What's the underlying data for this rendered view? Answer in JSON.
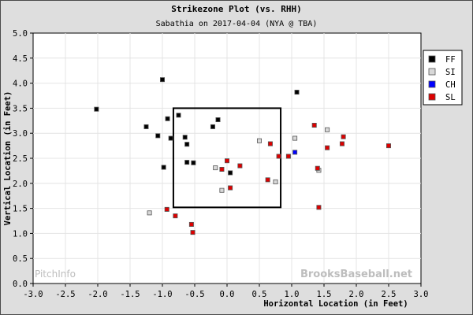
{
  "chart_data": {
    "type": "scatter",
    "title": "Strikezone Plot (vs. RHH)",
    "subtitle": "Sabathia on 2017-04-04 (NYA @ TBA)",
    "xlabel": "Horizontal Location (in Feet)",
    "ylabel": "Vertical Location (in Feet)",
    "xlim": [
      -3.0,
      3.0
    ],
    "ylim": [
      0.0,
      5.0
    ],
    "x_ticks": [
      "-3.0",
      "-2.5",
      "-2.0",
      "-1.5",
      "-1.0",
      "-0.5",
      "0.0",
      "0.5",
      "1.0",
      "1.5",
      "2.0",
      "2.5",
      "3.0"
    ],
    "y_ticks": [
      "0.0",
      "0.5",
      "1.0",
      "1.5",
      "2.0",
      "2.5",
      "3.0",
      "3.5",
      "4.0",
      "4.5",
      "5.0"
    ],
    "grid": true,
    "legend_position": "top-right",
    "strike_zone": {
      "x": [
        -0.83,
        0.83
      ],
      "y": [
        1.52,
        3.5
      ]
    },
    "watermark_left": "PitchInfo",
    "watermark_right": "BrooksBaseball.net",
    "series": [
      {
        "name": "FF",
        "color": "#000000",
        "points": [
          [
            -2.02,
            3.48
          ],
          [
            -1.25,
            3.13
          ],
          [
            -1.07,
            2.95
          ],
          [
            -1.0,
            4.07
          ],
          [
            -0.98,
            2.32
          ],
          [
            -0.92,
            3.29
          ],
          [
            -0.87,
            2.9
          ],
          [
            -0.75,
            3.36
          ],
          [
            -0.65,
            2.92
          ],
          [
            -0.62,
            2.78
          ],
          [
            -0.62,
            2.42
          ],
          [
            -0.52,
            2.41
          ],
          [
            -0.22,
            3.13
          ],
          [
            -0.14,
            3.27
          ],
          [
            0.05,
            2.21
          ],
          [
            1.08,
            3.82
          ]
        ]
      },
      {
        "name": "SI",
        "color": "#d8d8d8",
        "points": [
          [
            -1.2,
            1.41
          ],
          [
            -0.18,
            2.31
          ],
          [
            -0.08,
            1.86
          ],
          [
            0.5,
            2.85
          ],
          [
            0.75,
            2.03
          ],
          [
            1.05,
            2.9
          ],
          [
            1.42,
            2.26
          ],
          [
            1.55,
            3.07
          ]
        ]
      },
      {
        "name": "CH",
        "color": "#0000ff",
        "points": [
          [
            1.05,
            2.62
          ]
        ]
      },
      {
        "name": "SL",
        "color": "#dd0000",
        "points": [
          [
            -0.93,
            1.48
          ],
          [
            -0.8,
            1.35
          ],
          [
            -0.55,
            1.18
          ],
          [
            -0.53,
            1.02
          ],
          [
            -0.08,
            2.28
          ],
          [
            0.0,
            2.45
          ],
          [
            0.05,
            1.91
          ],
          [
            0.2,
            2.35
          ],
          [
            0.63,
            2.07
          ],
          [
            0.67,
            2.79
          ],
          [
            0.8,
            2.54
          ],
          [
            0.95,
            2.54
          ],
          [
            1.35,
            3.16
          ],
          [
            1.4,
            2.3
          ],
          [
            1.42,
            1.52
          ],
          [
            1.55,
            2.71
          ],
          [
            1.78,
            2.79
          ],
          [
            1.8,
            2.93
          ],
          [
            2.5,
            2.75
          ]
        ]
      }
    ]
  }
}
